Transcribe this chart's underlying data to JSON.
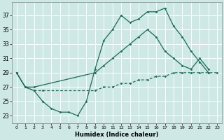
{
  "xlabel": "Humidex (Indice chaleur)",
  "bg_color": "#cde8e5",
  "grid_color": "#ffffff",
  "line_color": "#1a6b5a",
  "xlim": [
    -0.5,
    23.5
  ],
  "ylim": [
    22.0,
    38.8
  ],
  "xticks": [
    0,
    1,
    2,
    3,
    4,
    5,
    6,
    7,
    8,
    9,
    10,
    11,
    12,
    13,
    14,
    15,
    16,
    17,
    18,
    19,
    20,
    21,
    22,
    23
  ],
  "yticks": [
    23,
    25,
    27,
    29,
    31,
    33,
    35,
    37
  ],
  "line1_x": [
    0,
    1,
    2,
    3,
    4,
    5,
    6,
    7,
    8,
    9,
    10,
    11,
    12,
    13,
    14,
    15,
    16,
    17,
    18,
    19,
    20,
    21,
    22
  ],
  "line1_y": [
    29,
    27,
    26.5,
    25,
    24,
    23.5,
    23.5,
    23,
    25,
    29.5,
    33.5,
    35,
    37,
    36,
    36.5,
    37.5,
    37.5,
    38,
    35.5,
    34,
    32,
    30.5,
    29
  ],
  "line2_x": [
    0,
    1,
    2,
    9,
    10,
    11,
    12,
    13,
    14,
    15,
    16,
    17,
    18,
    19,
    20,
    21,
    22
  ],
  "line2_y": [
    29,
    27,
    27,
    29,
    30,
    31,
    32,
    33,
    34,
    35,
    34,
    32,
    31,
    30,
    29.5,
    31,
    29.5
  ],
  "line3_x": [
    0,
    1,
    2,
    3,
    9,
    10,
    11,
    12,
    13,
    14,
    15,
    16,
    17,
    18,
    19,
    20,
    21,
    22,
    23
  ],
  "line3_y": [
    29,
    27,
    26.5,
    26.5,
    26.5,
    27,
    27,
    27.5,
    27.5,
    28,
    28,
    28.5,
    28.5,
    29,
    29,
    29,
    29,
    29,
    29
  ]
}
